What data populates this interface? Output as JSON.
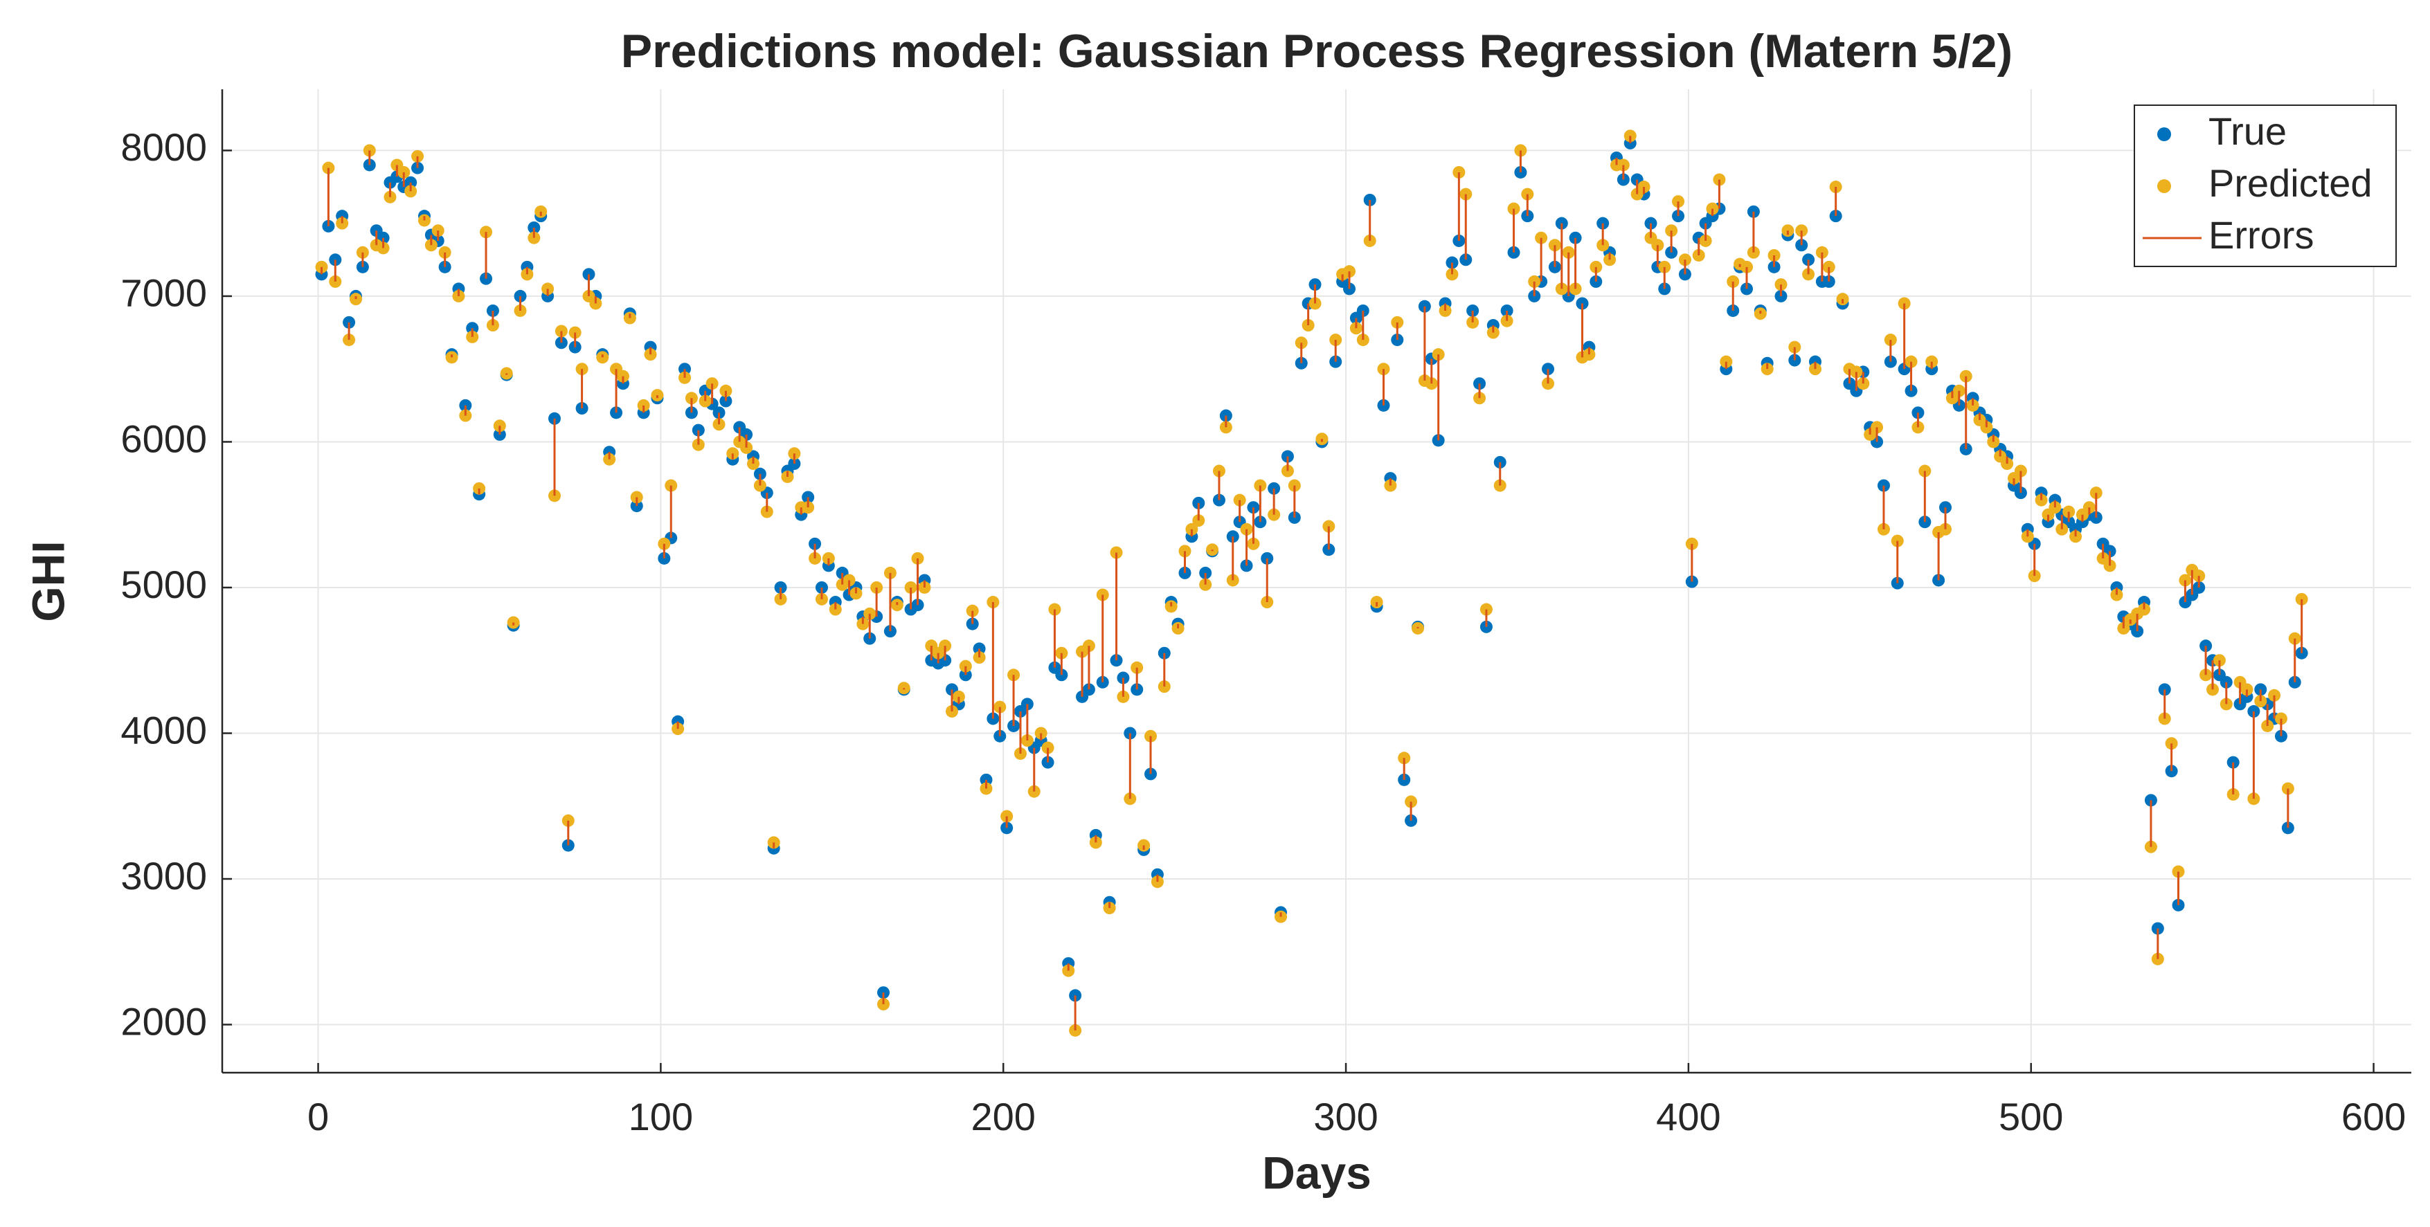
{
  "chart_data": {
    "type": "scatter",
    "title": "Predictions model: Gaussian Process Regression (Matern 5/2)",
    "xlabel": "Days",
    "ylabel": "GHI",
    "xlim": [
      -28,
      611
    ],
    "ylim": [
      1670,
      8420
    ],
    "xticks": [
      0,
      100,
      200,
      300,
      400,
      500,
      600
    ],
    "yticks": [
      2000,
      3000,
      4000,
      5000,
      6000,
      7000,
      8000
    ],
    "grid": true,
    "legend": "upper right",
    "errors": {
      "name": "Errors",
      "color": "#D95319"
    },
    "x": [
      1,
      3,
      5,
      7,
      9,
      11,
      13,
      15,
      17,
      19,
      21,
      23,
      25,
      27,
      29,
      31,
      33,
      35,
      37,
      39,
      41,
      43,
      45,
      47,
      49,
      51,
      53,
      55,
      57,
      59,
      61,
      63,
      65,
      67,
      69,
      71,
      73,
      75,
      77,
      79,
      81,
      83,
      85,
      87,
      89,
      91,
      93,
      95,
      97,
      99,
      101,
      103,
      105,
      107,
      109,
      111,
      113,
      115,
      117,
      119,
      121,
      123,
      125,
      127,
      129,
      131,
      133,
      135,
      137,
      139,
      141,
      143,
      145,
      147,
      149,
      151,
      153,
      155,
      157,
      159,
      161,
      163,
      165,
      167,
      169,
      171,
      173,
      175,
      177,
      179,
      181,
      183,
      185,
      187,
      189,
      191,
      193,
      195,
      197,
      199,
      201,
      203,
      205,
      207,
      209,
      211,
      213,
      215,
      217,
      219,
      221,
      223,
      225,
      227,
      229,
      231,
      233,
      235,
      237,
      239,
      241,
      243,
      245,
      247,
      249,
      251,
      253,
      255,
      257,
      259,
      261,
      263,
      265,
      267,
      269,
      271,
      273,
      275,
      277,
      279,
      281,
      283,
      285,
      287,
      289,
      291,
      293,
      295,
      297,
      299,
      301,
      303,
      305,
      307,
      309,
      311,
      313,
      315,
      317,
      319,
      321,
      323,
      325,
      327,
      329,
      331,
      333,
      335,
      337,
      339,
      341,
      343,
      345,
      347,
      349,
      351,
      353,
      355,
      357,
      359,
      361,
      363,
      365,
      367,
      369,
      371,
      373,
      375,
      377,
      379,
      381,
      383,
      385,
      387,
      389,
      391,
      393,
      395,
      397,
      399,
      401,
      403,
      405,
      407,
      409,
      411,
      413,
      415,
      417,
      419,
      421,
      423,
      425,
      427,
      429,
      431,
      433,
      435,
      437,
      439,
      441,
      443,
      445,
      447,
      449,
      451,
      453,
      455,
      457,
      459,
      461,
      463,
      465,
      467,
      469,
      471,
      473,
      475,
      477,
      479,
      481,
      483,
      485,
      487,
      489,
      491,
      493,
      495,
      497,
      499,
      501,
      503,
      505,
      507,
      509,
      511,
      513,
      515,
      517,
      519,
      521,
      523,
      525,
      527,
      529,
      531,
      533,
      535,
      537,
      539,
      541,
      543,
      545,
      547,
      549,
      551,
      553,
      555,
      557,
      559,
      561,
      563,
      565,
      567,
      569,
      571,
      573,
      575,
      577,
      579
    ],
    "series": [
      {
        "name": "True",
        "color": "#0072BD",
        "values": [
          7150,
          7480,
          7250,
          7550,
          6820,
          7000,
          7200,
          7900,
          7450,
          7400,
          7780,
          7820,
          7750,
          7780,
          7880,
          7550,
          7420,
          7380,
          7200,
          6600,
          7050,
          6250,
          6780,
          5640,
          7120,
          6900,
          6050,
          6460,
          4740,
          7000,
          7200,
          7470,
          7550,
          7000,
          6160,
          6680,
          3230,
          6650,
          6230,
          7150,
          7000,
          6600,
          5930,
          6200,
          6400,
          6880,
          5560,
          6200,
          6650,
          6300,
          5200,
          5340,
          4080,
          6500,
          6200,
          6080,
          6350,
          6260,
          6200,
          6280,
          5880,
          6100,
          6050,
          5900,
          5780,
          5650,
          3210,
          5000,
          5800,
          5850,
          5500,
          5620,
          5300,
          5000,
          5150,
          4900,
          5100,
          4950,
          5000,
          4800,
          4650,
          4800,
          2220,
          4700,
          4900,
          4300,
          4850,
          4880,
          5050,
          4500,
          4480,
          4500,
          4300,
          4200,
          4400,
          4750,
          4580,
          3680,
          4100,
          3980,
          3350,
          4050,
          4150,
          4200,
          3900,
          3950,
          3800,
          4450,
          4400,
          2420,
          2200,
          4250,
          4300,
          3300,
          4350,
          2840,
          4500,
          4380,
          4000,
          4300,
          3200,
          3720,
          3030,
          4550,
          4900,
          4750,
          5100,
          5350,
          5580,
          5100,
          5250,
          5600,
          6180,
          5350,
          5450,
          5150,
          5550,
          5450,
          5200,
          5680,
          2770,
          5900,
          5480,
          6540,
          6950,
          7080,
          6000,
          5260,
          6550,
          7100,
          7050,
          6850,
          6900,
          7660,
          4870,
          6250,
          5750,
          6700,
          3680,
          3400,
          4730,
          6930,
          6570,
          6010,
          6950,
          7230,
          7380,
          7250,
          6900,
          6400,
          4730,
          6800,
          5860,
          6900,
          7300,
          7850,
          7550,
          7000,
          7100,
          6500,
          7200,
          7500,
          7000,
          7400,
          6950,
          6650,
          7100,
          7500,
          7300,
          7950,
          7800,
          8050,
          7800,
          7700,
          7500,
          7200,
          7050,
          7300,
          7550,
          7150,
          5040,
          7400,
          7500,
          7550,
          7600,
          6500,
          6900,
          7200,
          7050,
          7580,
          6900,
          6540,
          7200,
          7000,
          7420,
          6560,
          7350,
          7250,
          6550,
          7100,
          7100,
          7550,
          6950,
          6400,
          6350,
          6480,
          6100,
          6000,
          5700,
          6550,
          5030,
          6500,
          6350,
          6200,
          5450,
          6500,
          5050,
          5550,
          6350,
          6250,
          5950,
          6300,
          6200,
          6150,
          6050,
          5950,
          5900,
          5700,
          5650,
          5400,
          5300,
          5650,
          5450,
          5600,
          5500,
          5450,
          5400,
          5450,
          5500,
          5480,
          5300,
          5250,
          5000,
          4800,
          4750,
          4700,
          4900,
          3540,
          2660,
          4300,
          3740,
          2820,
          4900,
          4950,
          5000,
          4600,
          4500,
          4400,
          4350,
          3800,
          4200,
          4250,
          4150,
          4300,
          4200,
          4100,
          3980,
          3350,
          4350,
          4550
        ]
      },
      {
        "name": "Predicted",
        "color": "#EDB120",
        "values": [
          7200,
          7880,
          7100,
          7500,
          6700,
          6980,
          7300,
          8000,
          7350,
          7330,
          7680,
          7900,
          7850,
          7720,
          7960,
          7520,
          7350,
          7450,
          7300,
          6580,
          7000,
          6180,
          6720,
          5680,
          7440,
          6800,
          6110,
          6470,
          4760,
          6900,
          7150,
          7400,
          7580,
          7050,
          5630,
          6760,
          3400,
          6750,
          6500,
          7000,
          6950,
          6580,
          5880,
          6500,
          6450,
          6850,
          5620,
          6250,
          6600,
          6320,
          5300,
          5700,
          4030,
          6440,
          6300,
          5980,
          6280,
          6400,
          6120,
          6350,
          5920,
          6000,
          5960,
          5850,
          5700,
          5520,
          3250,
          4920,
          5760,
          5920,
          5550,
          5550,
          5200,
          4920,
          5200,
          4850,
          5020,
          5050,
          4960,
          4750,
          4820,
          5000,
          2140,
          5100,
          4880,
          4310,
          5000,
          5200,
          5000,
          4600,
          4550,
          4600,
          4150,
          4250,
          4460,
          4840,
          4520,
          3620,
          4900,
          4180,
          3430,
          4400,
          3860,
          3950,
          3600,
          4000,
          3900,
          4850,
          4550,
          2370,
          1960,
          4560,
          4600,
          3250,
          4950,
          2800,
          5240,
          4250,
          3550,
          4450,
          3230,
          3980,
          2980,
          4320,
          4870,
          4720,
          5250,
          5400,
          5460,
          5020,
          5260,
          5800,
          6100,
          5050,
          5600,
          5400,
          5300,
          5700,
          4900,
          5500,
          2740,
          5800,
          5700,
          6680,
          6800,
          6950,
          6020,
          5420,
          6700,
          7150,
          7170,
          6780,
          6700,
          7380,
          4900,
          6500,
          5700,
          6820,
          3830,
          3530,
          4720,
          6420,
          6400,
          6600,
          6900,
          7150,
          7850,
          7700,
          6820,
          6300,
          4850,
          6750,
          5700,
          6830,
          7600,
          8000,
          7700,
          7100,
          7400,
          6400,
          7350,
          7050,
          7300,
          7050,
          6580,
          6600,
          7200,
          7350,
          7250,
          7900,
          7900,
          8100,
          7700,
          7750,
          7400,
          7350,
          7200,
          7450,
          7650,
          7250,
          5300,
          7280,
          7380,
          7600,
          7800,
          6550,
          7100,
          7220,
          7200,
          7300,
          6880,
          6500,
          7280,
          7080,
          7450,
          6650,
          7450,
          7150,
          6500,
          7300,
          7200,
          7750,
          6980,
          6500,
          6480,
          6400,
          6050,
          6100,
          5400,
          6700,
          5320,
          6950,
          6550,
          6100,
          5800,
          6550,
          5380,
          5400,
          6300,
          6350,
          6450,
          6250,
          6150,
          6100,
          6000,
          5900,
          5850,
          5750,
          5800,
          5350,
          5080,
          5600,
          5500,
          5550,
          5400,
          5520,
          5350,
          5500,
          5550,
          5650,
          5200,
          5150,
          4950,
          4720,
          4780,
          4820,
          4850,
          3220,
          2450,
          4100,
          3930,
          3050,
          5050,
          5120,
          5080,
          4400,
          4300,
          4500,
          4200,
          3580,
          4350,
          4300,
          3550,
          4220,
          4050,
          4260,
          4100,
          3620,
          4650,
          4920
        ]
      }
    ]
  }
}
